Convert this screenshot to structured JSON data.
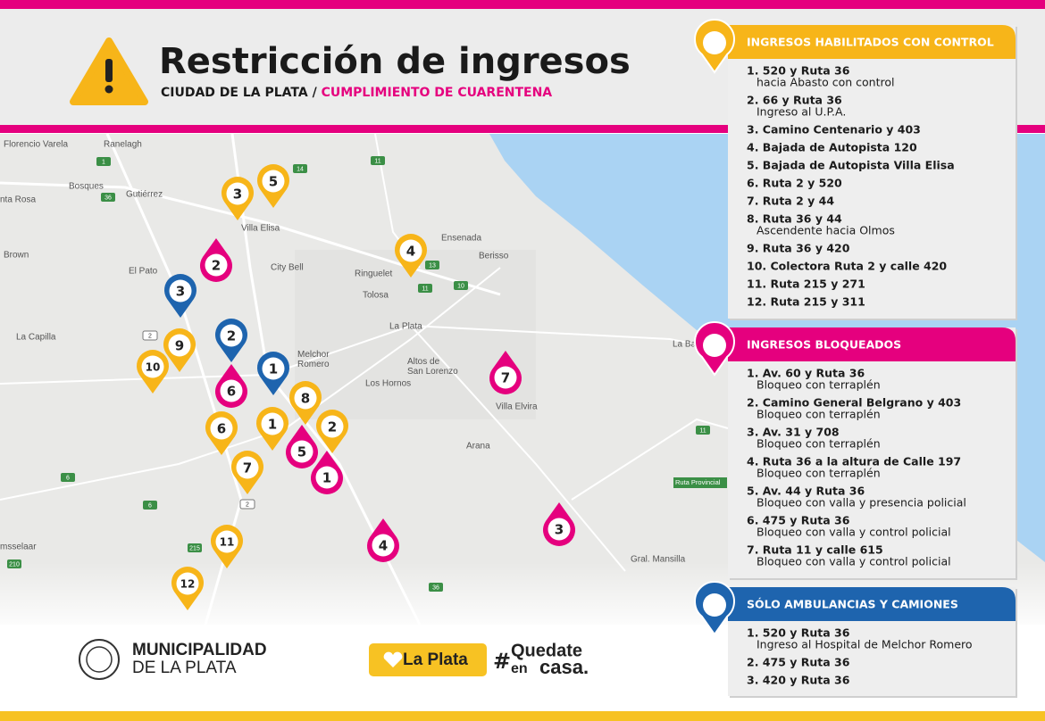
{
  "header": {
    "title": "Restricción de ingresos",
    "subtitle_city": "CIUDAD DE LA PLATA /",
    "subtitle_topic": "CUMPLIMIENTO DE CUARENTENA"
  },
  "panels": [
    {
      "title": "INGRESOS HABILITADOS CON CONTROL",
      "items": [
        {
          "label": "1. 520 y Ruta 36",
          "detail": "hacia Abasto con control"
        },
        {
          "label": "2. 66 y Ruta 36",
          "detail": "Ingreso al U.P.A."
        },
        {
          "label": "3. Camino Centenario y 403"
        },
        {
          "label": "4. Bajada de Autopista 120"
        },
        {
          "label": "5. Bajada de Autopista Villa Elisa"
        },
        {
          "label": "6. Ruta 2 y 520"
        },
        {
          "label": "7. Ruta 2 y 44"
        },
        {
          "label": "8. Ruta 36 y 44",
          "detail": "Ascendente hacia Olmos"
        },
        {
          "label": "9. Ruta 36 y 420"
        },
        {
          "label": "10. Colectora Ruta 2 y calle 420"
        },
        {
          "label": "11. Ruta 215 y 271"
        },
        {
          "label": "12. Ruta 215 y 311"
        }
      ]
    },
    {
      "title": "INGRESOS BLOQUEADOS",
      "items": [
        {
          "label": "1. Av. 60 y Ruta 36",
          "detail": "Bloqueo con terraplén"
        },
        {
          "label": "2. Camino General Belgrano y 403",
          "detail": "Bloqueo con terraplén"
        },
        {
          "label": "3. Av. 31 y 708",
          "detail": "Bloqueo con terraplén"
        },
        {
          "label": "4. Ruta 36 a la altura de Calle 197",
          "detail": "Bloqueo con terraplén"
        },
        {
          "label": "5. Av. 44 y Ruta 36",
          "detail": "Bloqueo con valla y presencia policial"
        },
        {
          "label": "6. 475 y Ruta 36",
          "detail": "Bloqueo con valla y control policial"
        },
        {
          "label": "7. Ruta 11 y calle 615",
          "detail": "Bloqueo con valla y control policial"
        }
      ]
    },
    {
      "title": "SÓLO AMBULANCIAS Y CAMIONES",
      "items": [
        {
          "label": "1. 520 y Ruta 36",
          "detail": "Ingreso al Hospital de Melchor Romero"
        },
        {
          "label": "2. 475 y Ruta 36"
        },
        {
          "label": "3. 420 y Ruta 36"
        }
      ]
    }
  ],
  "map": {
    "places": [
      "Florencio Varela",
      "Ranelagh",
      "Bosques",
      "Gutiérrez",
      "nta Rosa",
      "Villa Elisa",
      "Brown",
      "El Pato",
      "City Bell",
      "Ringuelet",
      "Tolosa",
      "Ensenada",
      "Berisso",
      "La Plata",
      "La Capilla",
      "Melchor Romero",
      "Altos de San Lorenzo",
      "Los Hornos",
      "Villa Elvira",
      "Arana",
      "Gral. Mansilla",
      "msselaar",
      "La Ba",
      "Ruta Provincial"
    ],
    "routes": [
      "1",
      "11",
      "36",
      "14",
      "2",
      "13",
      "10",
      "11",
      "6",
      "215",
      "210",
      "2",
      "36",
      "6",
      "11"
    ],
    "markers": [
      [
        "1",
        "2",
        "3",
        "4",
        "5",
        "6",
        "7",
        "8",
        "9",
        "10",
        "11",
        "12"
      ],
      [
        "1",
        "2",
        "3",
        "4",
        "5",
        "6",
        "7"
      ],
      [
        "1",
        "2",
        "3"
      ]
    ]
  },
  "footer": {
    "municipality_a": "MUNICIPALIDAD",
    "municipality_b": "DE LA PLATA",
    "brand": "La Plata",
    "hash": "#",
    "hashtag_a": "Quedate",
    "hashtag_b": "en",
    "hashtag_c": "casa."
  }
}
